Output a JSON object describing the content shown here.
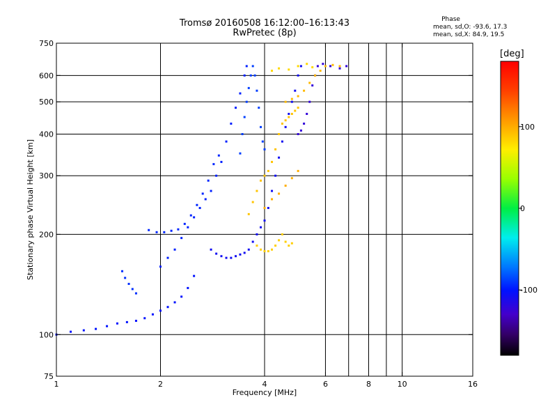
{
  "chart_data": {
    "type": "scatter",
    "title": "Tromsø 20160508 16:12:00–16:13:43",
    "subtitle": "RwPretec (8p)",
    "xlabel": "Frequency [MHz]",
    "ylabel": "Stationary phase Virtual Height [km]",
    "xscale": "log",
    "yscale": "log",
    "xlim": [
      1,
      16
    ],
    "ylim": [
      75,
      750
    ],
    "grid": true,
    "x_ticks": [
      1,
      2,
      4,
      6,
      8,
      10,
      16
    ],
    "x_tick_labels": [
      "1",
      "2",
      "4",
      "6",
      "8",
      "10",
      "16"
    ],
    "x_minor": [
      7,
      9
    ],
    "y_ticks": [
      75,
      100,
      200,
      300,
      400,
      500,
      600,
      750
    ],
    "y_tick_labels": [
      "75",
      "100",
      "200",
      "300",
      "400",
      "500",
      "600",
      "750"
    ],
    "x_grid": [
      2,
      4,
      6,
      8,
      10
    ],
    "y_grid": [
      100,
      200,
      300,
      400,
      500,
      600
    ],
    "phase_stats": {
      "heading": "Phase",
      "o_mode": "mean, sd,O: -93.6, 17.3",
      "x_mode": "mean, sd,X:  84.9, 19.5"
    },
    "colorbar": {
      "unit": "[deg]",
      "range": [
        -180,
        180
      ],
      "ticks": [
        100,
        0,
        -100
      ],
      "tick_labels": [
        "100",
        "0",
        "-100"
      ]
    },
    "traces": [
      {
        "mode": "O",
        "phase_deg": -105,
        "points": [
          [
            1.0,
            100
          ],
          [
            1.1,
            102
          ],
          [
            1.2,
            103
          ],
          [
            1.3,
            104
          ],
          [
            1.4,
            106
          ],
          [
            1.5,
            108
          ],
          [
            1.6,
            109
          ],
          [
            1.7,
            110
          ],
          [
            1.8,
            112
          ],
          [
            1.9,
            115
          ],
          [
            2.0,
            118
          ],
          [
            2.1,
            121
          ],
          [
            2.2,
            125
          ],
          [
            2.3,
            130
          ],
          [
            2.4,
            138
          ],
          [
            2.5,
            150
          ]
        ]
      },
      {
        "mode": "O",
        "phase_deg": -95,
        "points": [
          [
            1.55,
            155
          ],
          [
            1.58,
            148
          ],
          [
            1.62,
            142
          ],
          [
            1.66,
            137
          ],
          [
            1.7,
            133
          ]
        ]
      },
      {
        "mode": "O",
        "phase_deg": -98,
        "points": [
          [
            1.85,
            206
          ],
          [
            1.95,
            203
          ],
          [
            2.05,
            203
          ],
          [
            2.15,
            205
          ],
          [
            2.25,
            207
          ],
          [
            2.35,
            215
          ],
          [
            2.45,
            228
          ],
          [
            2.55,
            245
          ],
          [
            2.65,
            265
          ],
          [
            2.75,
            290
          ],
          [
            2.85,
            325
          ],
          [
            2.95,
            345
          ]
        ]
      },
      {
        "mode": "O",
        "phase_deg": -100,
        "points": [
          [
            2.0,
            160
          ],
          [
            2.1,
            170
          ],
          [
            2.2,
            180
          ],
          [
            2.3,
            195
          ],
          [
            2.4,
            210
          ],
          [
            2.5,
            225
          ],
          [
            2.6,
            240
          ],
          [
            2.7,
            255
          ],
          [
            2.8,
            270
          ],
          [
            2.9,
            300
          ],
          [
            3.0,
            330
          ],
          [
            3.1,
            380
          ],
          [
            3.2,
            430
          ],
          [
            3.3,
            480
          ],
          [
            3.4,
            530
          ],
          [
            3.5,
            600
          ],
          [
            3.55,
            640
          ]
        ]
      },
      {
        "mode": "O",
        "phase_deg": -110,
        "points": [
          [
            2.8,
            180
          ],
          [
            2.9,
            175
          ],
          [
            3.0,
            172
          ],
          [
            3.1,
            170
          ],
          [
            3.2,
            170
          ],
          [
            3.3,
            172
          ],
          [
            3.4,
            174
          ],
          [
            3.5,
            176
          ],
          [
            3.6,
            180
          ],
          [
            3.7,
            190
          ],
          [
            3.8,
            200
          ],
          [
            3.9,
            210
          ],
          [
            4.0,
            220
          ],
          [
            4.1,
            240
          ],
          [
            4.2,
            270
          ],
          [
            4.3,
            300
          ],
          [
            4.4,
            340
          ],
          [
            4.5,
            380
          ],
          [
            4.6,
            420
          ],
          [
            4.7,
            460
          ],
          [
            4.8,
            500
          ],
          [
            4.9,
            540
          ],
          [
            5.0,
            600
          ],
          [
            5.1,
            640
          ]
        ]
      },
      {
        "mode": "O",
        "phase_deg": -90,
        "points": [
          [
            3.4,
            350
          ],
          [
            3.45,
            400
          ],
          [
            3.5,
            450
          ],
          [
            3.55,
            500
          ],
          [
            3.6,
            550
          ],
          [
            3.65,
            600
          ],
          [
            3.7,
            640
          ],
          [
            3.75,
            600
          ],
          [
            3.8,
            540
          ],
          [
            3.85,
            480
          ],
          [
            3.9,
            420
          ],
          [
            3.95,
            380
          ],
          [
            4.0,
            360
          ]
        ]
      },
      {
        "mode": "O",
        "phase_deg": -120,
        "points": [
          [
            5.0,
            400
          ],
          [
            5.1,
            410
          ],
          [
            5.2,
            430
          ],
          [
            5.3,
            460
          ],
          [
            5.4,
            500
          ],
          [
            5.5,
            560
          ],
          [
            5.6,
            600
          ],
          [
            5.7,
            640
          ],
          [
            5.9,
            650
          ],
          [
            6.2,
            640
          ],
          [
            6.6,
            630
          ],
          [
            6.9,
            640
          ]
        ]
      },
      {
        "mode": "X",
        "phase_deg": 85,
        "points": [
          [
            3.8,
            185
          ],
          [
            3.9,
            180
          ],
          [
            4.0,
            178
          ],
          [
            4.1,
            178
          ],
          [
            4.2,
            180
          ],
          [
            4.3,
            185
          ],
          [
            4.4,
            192
          ],
          [
            4.5,
            200
          ],
          [
            4.6,
            190
          ],
          [
            4.7,
            185
          ],
          [
            4.8,
            188
          ]
        ]
      },
      {
        "mode": "X",
        "phase_deg": 90,
        "points": [
          [
            3.6,
            230
          ],
          [
            3.7,
            250
          ],
          [
            3.8,
            270
          ],
          [
            3.9,
            290
          ],
          [
            4.0,
            300
          ],
          [
            4.1,
            310
          ],
          [
            4.2,
            330
          ],
          [
            4.3,
            360
          ],
          [
            4.4,
            400
          ],
          [
            4.5,
            430
          ],
          [
            4.6,
            440
          ],
          [
            4.7,
            450
          ],
          [
            4.8,
            460
          ],
          [
            4.9,
            470
          ],
          [
            5.0,
            480
          ]
        ]
      },
      {
        "mode": "X",
        "phase_deg": 95,
        "points": [
          [
            4.6,
            500
          ],
          [
            4.8,
            510
          ],
          [
            5.0,
            520
          ],
          [
            5.2,
            540
          ],
          [
            5.4,
            570
          ],
          [
            5.6,
            600
          ],
          [
            5.8,
            620
          ],
          [
            6.0,
            640
          ],
          [
            6.3,
            645
          ],
          [
            6.6,
            640
          ]
        ]
      },
      {
        "mode": "X",
        "phase_deg": 80,
        "points": [
          [
            4.2,
            620
          ],
          [
            4.4,
            630
          ],
          [
            4.7,
            625
          ],
          [
            5.0,
            640
          ],
          [
            5.3,
            650
          ],
          [
            5.5,
            635
          ]
        ]
      },
      {
        "mode": "X",
        "phase_deg": 100,
        "points": [
          [
            4.0,
            240
          ],
          [
            4.2,
            255
          ],
          [
            4.4,
            265
          ],
          [
            4.6,
            280
          ],
          [
            4.8,
            295
          ],
          [
            5.0,
            310
          ]
        ]
      }
    ]
  }
}
